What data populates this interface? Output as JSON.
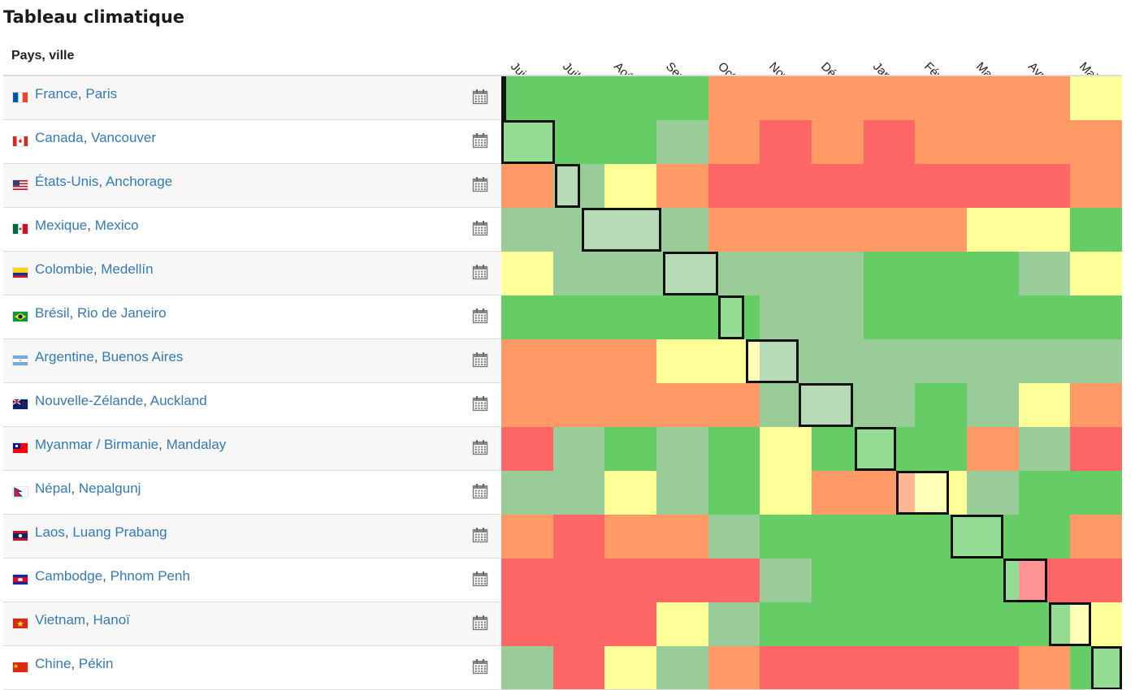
{
  "page": {
    "title": "Tableau climatique",
    "column_header": "Pays, ville"
  },
  "months": [
    "Juin",
    "Juil.",
    "Août",
    "Sep.",
    "Oct.",
    "Nov.",
    "Déc.",
    "Jan.",
    "Fév.",
    "Mars",
    "Avr.",
    "Mai"
  ],
  "legend_colors": {
    "G": "#66cc66",
    "g": "#99cc99",
    "Y": "#ffff99",
    "O": "#ff9966",
    "R": "#ff6666"
  },
  "rows": [
    {
      "country": "France",
      "city": "Paris",
      "flag": "france-flag",
      "colors": [
        "G",
        "G",
        "G",
        "G",
        "O",
        "O",
        "O",
        "O",
        "O",
        "O",
        "O",
        "Y"
      ],
      "highlight": [
        0,
        0.03
      ]
    },
    {
      "country": "Canada",
      "city": "Vancouver",
      "flag": "canada-flag",
      "colors": [
        "G",
        "G",
        "G",
        "g",
        "O",
        "R",
        "O",
        "R",
        "O",
        "O",
        "O",
        "O"
      ],
      "highlight": [
        0,
        1.03
      ]
    },
    {
      "country": "États-Unis",
      "city": "Anchorage",
      "flag": "usa-flag",
      "colors": [
        "O",
        "g",
        "Y",
        "O",
        "R",
        "R",
        "R",
        "R",
        "R",
        "R",
        "R",
        "O"
      ],
      "highlight": [
        1.03,
        1.52
      ]
    },
    {
      "country": "Mexique",
      "city": "Mexico",
      "flag": "mexico-flag",
      "colors": [
        "g",
        "g",
        "g",
        "g",
        "O",
        "O",
        "O",
        "O",
        "O",
        "Y",
        "Y",
        "G"
      ],
      "highlight": [
        1.55,
        3.1
      ]
    },
    {
      "country": "Colombie",
      "city": "Medellín",
      "flag": "colombia-flag",
      "colors": [
        "Y",
        "g",
        "g",
        "g",
        "g",
        "g",
        "g",
        "G",
        "G",
        "G",
        "g",
        "Y"
      ],
      "highlight": [
        3.13,
        4.2
      ]
    },
    {
      "country": "Brésil",
      "city": "Rio de Janeiro",
      "flag": "brazil-flag",
      "colors": [
        "G",
        "G",
        "G",
        "G",
        "G",
        "g",
        "g",
        "G",
        "G",
        "G",
        "G",
        "G"
      ],
      "highlight": [
        4.2,
        4.7
      ]
    },
    {
      "country": "Argentine",
      "city": "Buenos Aires",
      "flag": "argentina-flag",
      "colors": [
        "O",
        "O",
        "O",
        "Y",
        "Y",
        "g",
        "g",
        "g",
        "g",
        "g",
        "g",
        "g"
      ],
      "highlight": [
        4.73,
        5.75
      ]
    },
    {
      "country": "Nouvelle-Zélande",
      "city": "Auckland",
      "flag": "newzealand-flag",
      "colors": [
        "O",
        "O",
        "O",
        "O",
        "O",
        "g",
        "g",
        "g",
        "G",
        "g",
        "Y",
        "O"
      ],
      "highlight": [
        5.75,
        6.8
      ]
    },
    {
      "country": "Myanmar / Birmanie",
      "city": "Mandalay",
      "flag": "myanmar-flag",
      "colors": [
        "R",
        "g",
        "G",
        "g",
        "G",
        "Y",
        "G",
        "G",
        "G",
        "O",
        "g",
        "R"
      ],
      "highlight": [
        6.83,
        7.63
      ]
    },
    {
      "country": "Népal",
      "city": "Nepalgunj",
      "flag": "nepal-flag",
      "colors": [
        "g",
        "g",
        "Y",
        "g",
        "G",
        "Y",
        "O",
        "O",
        "Y",
        "g",
        "G",
        "G"
      ],
      "highlight": [
        7.63,
        8.65
      ]
    },
    {
      "country": "Laos",
      "city": "Luang Prabang",
      "flag": "laos-flag",
      "colors": [
        "O",
        "R",
        "O",
        "O",
        "g",
        "G",
        "G",
        "G",
        "G",
        "G",
        "G",
        "O"
      ],
      "highlight": [
        8.68,
        9.7
      ]
    },
    {
      "country": "Cambodge",
      "city": "Phnom Penh",
      "flag": "cambodia-flag",
      "colors": [
        "R",
        "R",
        "R",
        "R",
        "R",
        "g",
        "G",
        "G",
        "G",
        "G",
        "R",
        "R"
      ],
      "highlight": [
        9.7,
        10.55
      ]
    },
    {
      "country": "Vietnam",
      "city": "Hanoï",
      "flag": "vietnam-flag",
      "colors": [
        "R",
        "R",
        "R",
        "Y",
        "g",
        "G",
        "G",
        "G",
        "G",
        "G",
        "G",
        "Y"
      ],
      "highlight": [
        10.58,
        11.4
      ]
    },
    {
      "country": "Chine",
      "city": "Pékin",
      "flag": "china-flag",
      "colors": [
        "g",
        "R",
        "Y",
        "g",
        "O",
        "R",
        "R",
        "R",
        "R",
        "R",
        "O",
        "G"
      ],
      "highlight": [
        11.4,
        12
      ]
    }
  ]
}
